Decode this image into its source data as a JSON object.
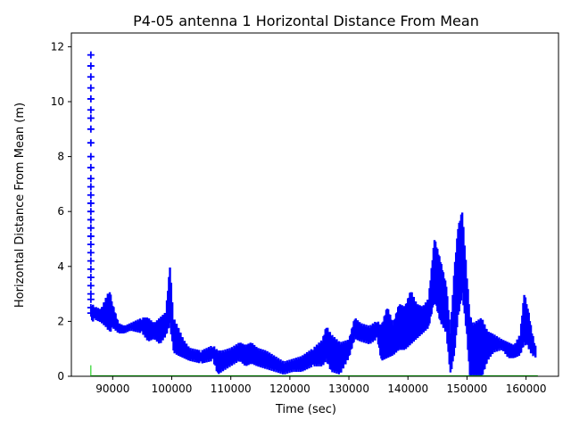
{
  "chart_data": {
    "type": "scatter",
    "title": "P4-05 antenna 1 Horizontal Distance From Mean",
    "xlabel": "Time (sec)",
    "ylabel": "Horizontal Distance From Mean (m)",
    "xlim": [
      83000,
      165500
    ],
    "ylim": [
      0,
      12.5
    ],
    "xticks": [
      90000,
      100000,
      110000,
      120000,
      130000,
      140000,
      150000,
      160000
    ],
    "xtick_labels": [
      "90000",
      "100000",
      "110000",
      "120000",
      "130000",
      "140000",
      "150000",
      "160000"
    ],
    "yticks": [
      0,
      2,
      4,
      6,
      8,
      10,
      12
    ],
    "ytick_labels": [
      "0",
      "2",
      "4",
      "6",
      "8",
      "10",
      "12"
    ],
    "grid": false,
    "series": [
      {
        "marker": "+",
        "color": "#0000ff",
        "points": [
          [
            86300,
            11.7
          ],
          [
            86300,
            11.3
          ],
          [
            86300,
            10.9
          ],
          [
            86300,
            10.5
          ],
          [
            86300,
            10.1
          ],
          [
            86300,
            9.7
          ],
          [
            86300,
            9.4
          ],
          [
            86300,
            9.0
          ],
          [
            86300,
            8.5
          ],
          [
            86300,
            8.0
          ],
          [
            86300,
            7.6
          ],
          [
            86300,
            7.2
          ],
          [
            86300,
            6.9
          ],
          [
            86300,
            6.6
          ],
          [
            86300,
            6.3
          ],
          [
            86300,
            6.0
          ],
          [
            86300,
            5.7
          ],
          [
            86300,
            5.4
          ],
          [
            86300,
            5.1
          ],
          [
            86300,
            4.8
          ],
          [
            86300,
            4.5
          ],
          [
            86300,
            4.2
          ],
          [
            86300,
            3.9
          ],
          [
            86300,
            3.6
          ],
          [
            86300,
            3.3
          ],
          [
            86300,
            3.0
          ],
          [
            86300,
            2.8
          ],
          [
            86300,
            2.5
          ],
          [
            86300,
            2.3
          ]
        ],
        "envelope": {
          "x": [
            86500,
            87000,
            88000,
            89000,
            89500,
            90000,
            91000,
            92000,
            93000,
            95000,
            96000,
            97000,
            98000,
            99000,
            99700,
            100300,
            101000,
            102000,
            103000,
            105000,
            107000,
            107800,
            108500,
            110000,
            111500,
            112500,
            113500,
            114500,
            116000,
            117500,
            119000,
            120500,
            122000,
            124000,
            125500,
            126200,
            127000,
            128500,
            130000,
            131000,
            132000,
            133500,
            134800,
            135500,
            136500,
            137500,
            138500,
            139500,
            140500,
            141500,
            142500,
            143500,
            144500,
            145500,
            146500,
            147200,
            147800,
            148500,
            149200,
            150000,
            150500,
            151000,
            151800,
            152500,
            153500,
            154500,
            156000,
            157000,
            158000,
            159000,
            159700,
            160300,
            161000,
            161800
          ],
          "low": [
            2.0,
            2.1,
            2.0,
            1.8,
            1.6,
            1.8,
            1.6,
            1.6,
            1.7,
            1.6,
            1.3,
            1.4,
            1.2,
            1.5,
            1.9,
            0.9,
            0.8,
            0.7,
            0.6,
            0.5,
            0.6,
            0.1,
            0.2,
            0.4,
            0.6,
            0.4,
            0.5,
            0.4,
            0.3,
            0.2,
            0.1,
            0.2,
            0.2,
            0.4,
            0.4,
            0.6,
            0.2,
            0.1,
            0.7,
            1.4,
            1.3,
            1.2,
            1.4,
            0.6,
            0.7,
            0.8,
            1.0,
            1.0,
            1.2,
            1.4,
            1.6,
            1.8,
            2.8,
            2.0,
            1.6,
            0.1,
            0.7,
            2.2,
            3.0,
            1.5,
            0.0,
            0.0,
            0.0,
            0.0,
            0.6,
            0.9,
            1.0,
            0.7,
            0.7,
            0.8,
            1.2,
            1.1,
            0.8,
            0.7
          ],
          "high": [
            2.6,
            2.5,
            2.4,
            2.9,
            3.1,
            2.6,
            1.9,
            1.8,
            1.9,
            2.1,
            2.1,
            1.9,
            2.1,
            2.3,
            4.0,
            2.1,
            1.8,
            1.3,
            1.0,
            0.9,
            1.1,
            0.9,
            0.9,
            1.0,
            1.2,
            1.1,
            1.2,
            1.0,
            0.9,
            0.7,
            0.5,
            0.6,
            0.7,
            1.0,
            1.3,
            1.8,
            1.5,
            1.2,
            1.3,
            2.1,
            1.9,
            1.8,
            2.0,
            1.8,
            2.5,
            1.9,
            2.6,
            2.5,
            3.1,
            2.6,
            2.5,
            2.8,
            5.0,
            4.2,
            3.3,
            1.6,
            3.7,
            5.4,
            6.0,
            3.6,
            2.2,
            1.9,
            2.0,
            2.1,
            1.6,
            1.5,
            1.3,
            1.2,
            1.1,
            1.5,
            3.0,
            2.5,
            1.6,
            0.9
          ]
        }
      },
      {
        "line": true,
        "color": "#00cc00",
        "points": [
          [
            86300,
            0.4
          ],
          [
            86300,
            0.0
          ],
          [
            86500,
            0.02
          ],
          [
            162000,
            0.02
          ]
        ]
      }
    ]
  }
}
